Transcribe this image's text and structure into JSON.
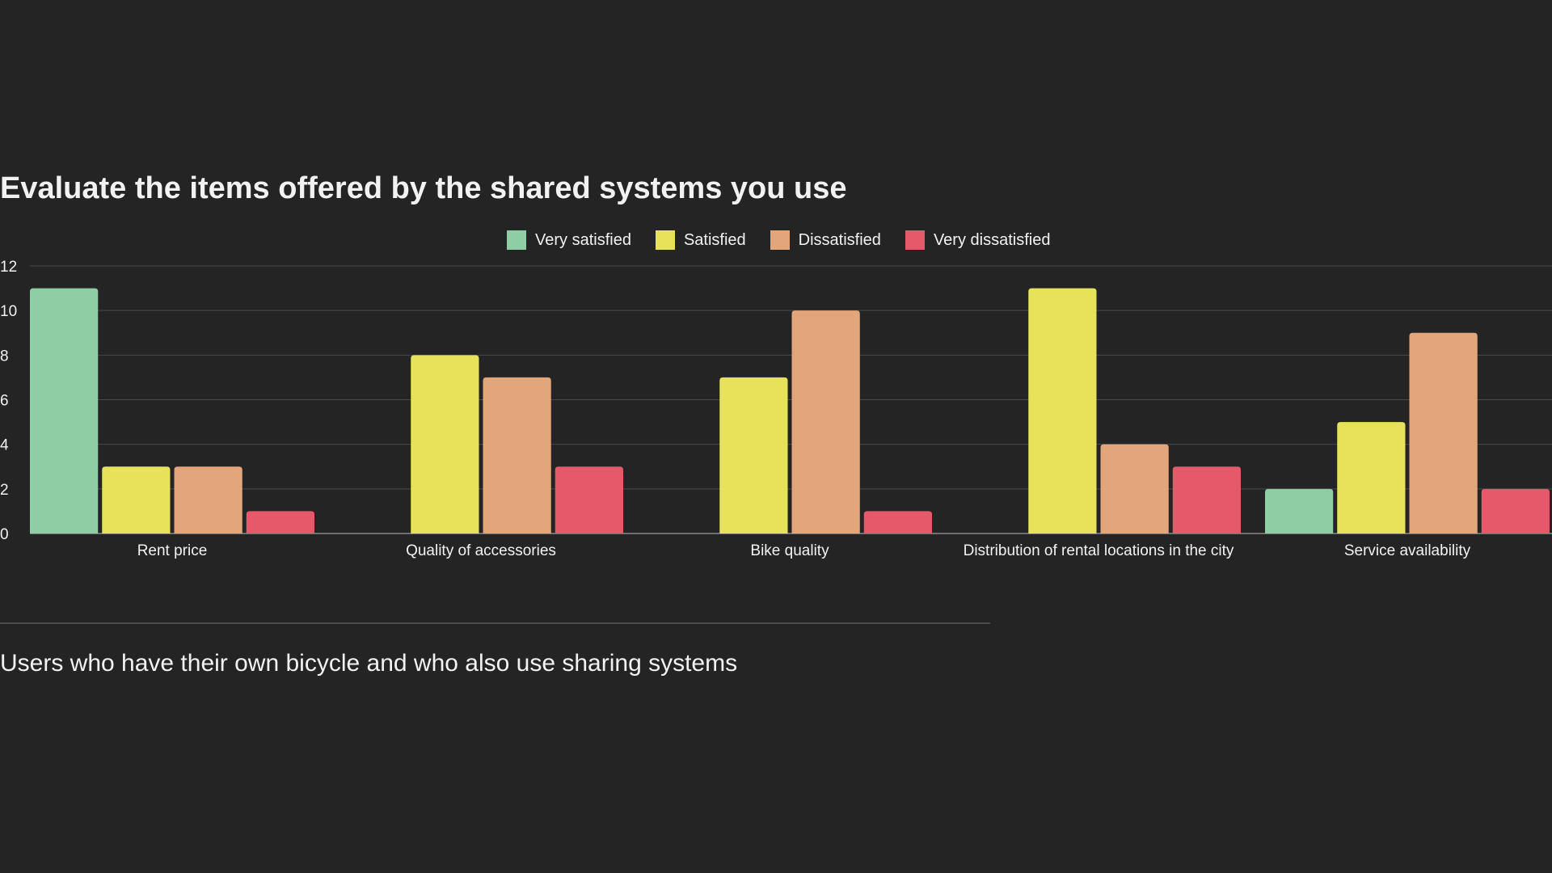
{
  "chart_data": {
    "type": "bar",
    "title": "Evaluate the items offered by the shared systems you use",
    "categories": [
      "Rent price",
      "Quality of accessories",
      "Bike quality",
      "Distribution of rental locations in the city",
      "Service availability"
    ],
    "series": [
      {
        "name": "Very satisfied",
        "color": "#8fcea5",
        "values": [
          11,
          0,
          0,
          0,
          2
        ]
      },
      {
        "name": "Satisfied",
        "color": "#e6e35a",
        "values": [
          3,
          8,
          7,
          11,
          5
        ]
      },
      {
        "name": "Dissatisfied",
        "color": "#e3a57a",
        "values": [
          3,
          7,
          10,
          4,
          9
        ]
      },
      {
        "name": "Very dissatisfied",
        "color": "#e5596b",
        "values": [
          1,
          3,
          1,
          3,
          2
        ]
      }
    ],
    "yticks": [
      0,
      2,
      4,
      6,
      8,
      10,
      12
    ],
    "ylim": [
      0,
      12
    ],
    "xlabel": "",
    "ylabel": "",
    "grid": true,
    "legend": "top"
  },
  "footer": {
    "subtitle": "Users who have their own bicycle and who also use sharing systems"
  }
}
